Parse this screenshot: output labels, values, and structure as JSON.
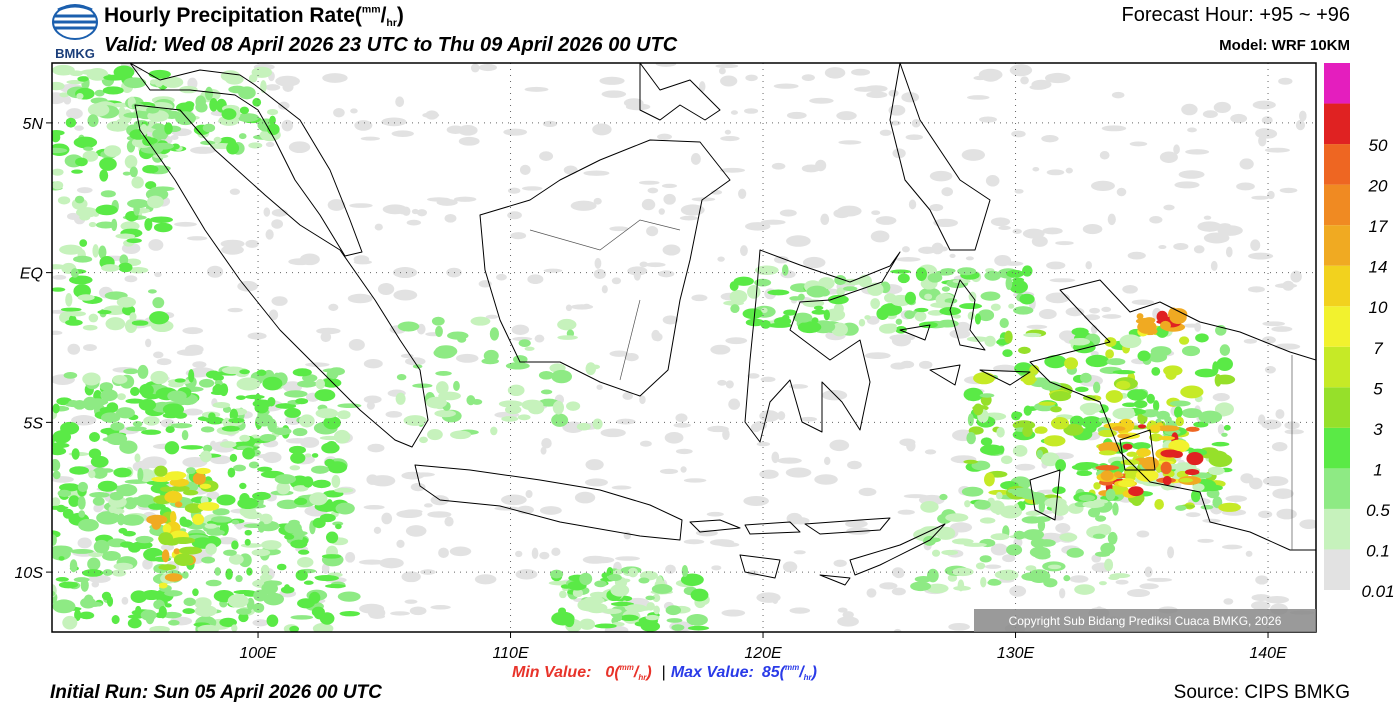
{
  "header": {
    "logo_text": "BMKG",
    "title": "Hourly Precipitation Rate",
    "title_units": [
      "(",
      "mm",
      "/",
      "hr",
      ")"
    ],
    "valid": "Valid: Wed 08 April 2026 23 UTC to Thu 09 April 2026 00 UTC",
    "forecast_hour": "Forecast Hour: +95 ~ +96",
    "model": "Model: WRF 10KM"
  },
  "map": {
    "lonlim": [
      91.84,
      141.9
    ],
    "latlim": [
      -12,
      7
    ],
    "lon_ticks": [
      {
        "value": 100,
        "label": "100E"
      },
      {
        "value": 110,
        "label": "110E"
      },
      {
        "value": 120,
        "label": "120E"
      },
      {
        "value": 130,
        "label": "130E"
      },
      {
        "value": 140,
        "label": "140E"
      }
    ],
    "lat_ticks": [
      {
        "value": 5,
        "label": "5N"
      },
      {
        "value": 0,
        "label": "EQ"
      },
      {
        "value": -5,
        "label": "5S"
      },
      {
        "value": -10,
        "label": "10S"
      }
    ],
    "copyright": "Copyright Sub Bidang Prediksi Cuaca BMKG, 2026"
  },
  "legend": {
    "levels": [
      "0.01",
      "0.1",
      "0.5",
      "1",
      "3",
      "5",
      "7",
      "10",
      "14",
      "17",
      "20",
      "50"
    ],
    "colors": [
      "#e2e2e2",
      "#c6f2bc",
      "#8eea84",
      "#5aea46",
      "#96e02a",
      "#c6ea26",
      "#f2f22e",
      "#f2d21e",
      "#f0aa22",
      "#f08a22",
      "#ee6622",
      "#e02222",
      "#e41ebe"
    ]
  },
  "footer": {
    "min_label": "Min Value:",
    "min_value": "0",
    "min_units": [
      "(",
      "mm",
      "/",
      "hr",
      ")"
    ],
    "separator": "|",
    "max_label": "Max Value:",
    "max_value": "85",
    "max_units": [
      "(",
      "mm",
      "/",
      "hr",
      ")"
    ],
    "initial_run": "Initial Run: Sun 05 April 2026 00 UTC",
    "source": "Source: CIPS BMKG"
  }
}
